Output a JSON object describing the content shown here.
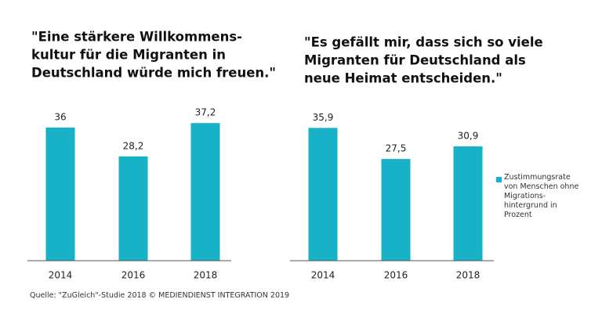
{
  "chart_data": [
    {
      "type": "bar",
      "title": [
        "\"Eine stärkere Willkommens-",
        "kultur für die Migranten in",
        "Deutschland würde mich freuen.\""
      ],
      "categories": [
        "2014",
        "2016",
        "2018"
      ],
      "values": [
        36,
        28.2,
        37.2
      ],
      "value_labels": [
        "36",
        "28,2",
        "37,2"
      ],
      "color": "#17b1c8",
      "ylim": [
        0,
        40
      ]
    },
    {
      "type": "bar",
      "title": [
        "\"Es gefällt mir, dass sich so viele",
        "Migranten für Deutschland als",
        "neue Heimat entscheiden.\""
      ],
      "categories": [
        "2014",
        "2016",
        "2018"
      ],
      "series": [
        {
          "name": "Zustimmungsrate von Menschen ohne Migrations-hintergrund in Prozent",
          "color": "#17b1c8",
          "values": [
            35.9,
            27.5,
            30.9
          ],
          "value_labels": [
            "35,9",
            "27,5",
            "30,9"
          ]
        }
      ],
      "ylim": [
        0,
        40
      ]
    }
  ],
  "source": "Quelle: \"ZuGleich\"-Studie 2018 © MEDIENDIENST INTEGRATION 2019"
}
